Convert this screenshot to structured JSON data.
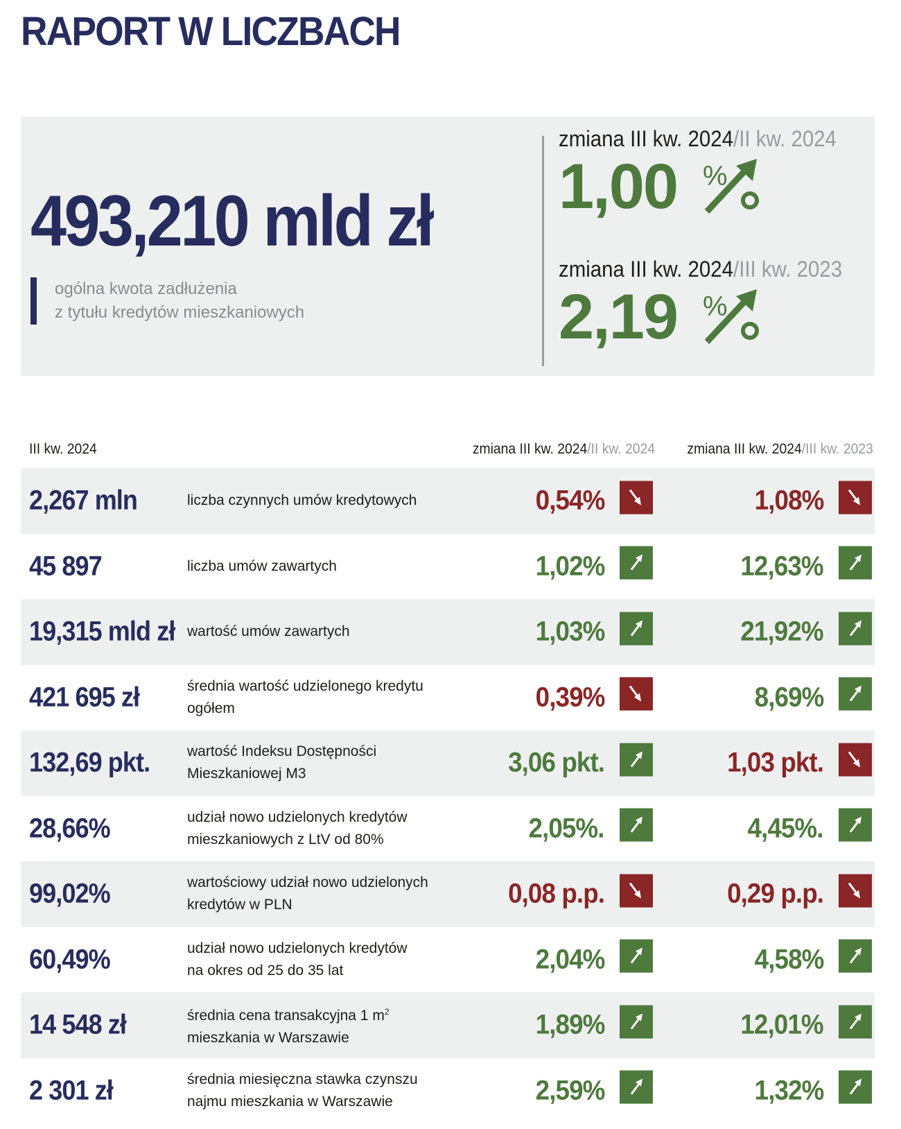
{
  "title": "RAPORT W LICZBACH",
  "summary": {
    "amount": "493,210 mld zł",
    "description_line1": "ogólna kwota zadłużenia",
    "description_line2": "z tytułu kredytów mieszkaniowych",
    "changes": [
      {
        "label_main": "zmiana III kw. 2024",
        "label_ref": "/II kw. 2024",
        "value": "1,00",
        "unit": "%",
        "direction": "up"
      },
      {
        "label_main": "zmiana III kw. 2024",
        "label_ref": "/III kw. 2023",
        "value": "2,19",
        "unit": "%",
        "direction": "up"
      }
    ]
  },
  "table": {
    "headers": {
      "quarter": "III kw. 2024",
      "col1_main": "zmiana III kw. 2024",
      "col1_ref": "/II kw. 2024",
      "col2_main": "zmiana III kw. 2024",
      "col2_ref": "/III kw. 2023"
    },
    "rows": [
      {
        "value": "2,267 mln",
        "desc1": "liczba czynnych umów kredytowych",
        "desc2": "",
        "c1": "0,54%",
        "c1_dir": "down",
        "c2": "1,08%",
        "c2_dir": "down"
      },
      {
        "value": "45 897",
        "desc1": "liczba umów zawartych",
        "desc2": "",
        "c1": "1,02%",
        "c1_dir": "up",
        "c2": "12,63%",
        "c2_dir": "up"
      },
      {
        "value": "19,315 mld zł",
        "desc1": "wartość umów zawartych",
        "desc2": "",
        "c1": "1,03%",
        "c1_dir": "up",
        "c2": "21,92%",
        "c2_dir": "up"
      },
      {
        "value": "421 695 zł",
        "desc1": "średnia wartość udzielonego kredytu",
        "desc2": "ogółem",
        "c1": "0,39%",
        "c1_dir": "down",
        "c2": "8,69%",
        "c2_dir": "up"
      },
      {
        "value": "132,69 pkt.",
        "desc1": "wartość Indeksu Dostępności",
        "desc2": "Mieszkaniowej M3",
        "c1": "3,06 pkt.",
        "c1_dir": "up",
        "c2": "1,03 pkt.",
        "c2_dir": "down"
      },
      {
        "value": "28,66%",
        "desc1": "udział nowo udzielonych kredytów",
        "desc2": "mieszkaniowych z LtV od 80%",
        "c1": "2,05%.",
        "c1_dir": "up",
        "c2": "4,45%.",
        "c2_dir": "up"
      },
      {
        "value": "99,02%",
        "desc1": "wartościowy udział nowo udzielonych",
        "desc2": "kredytów w PLN",
        "c1": "0,08 p.p.",
        "c1_dir": "down",
        "c2": "0,29 p.p.",
        "c2_dir": "down"
      },
      {
        "value": "60,49%",
        "desc1": "udział nowo udzielonych kredytów",
        "desc2": "na okres od 25 do 35 lat",
        "c1": "2,04%",
        "c1_dir": "up",
        "c2": "4,58%",
        "c2_dir": "up"
      },
      {
        "value": "14 548 zł",
        "desc1": "średnia cena transakcyjna 1 m",
        "desc1_sup": "2",
        "desc2": "mieszkania w Warszawie",
        "c1": "1,89%",
        "c1_dir": "up",
        "c2": "12,01%",
        "c2_dir": "up"
      },
      {
        "value": "2 301 zł",
        "desc1": "średnia miesięczna stawka czynszu",
        "desc2": "najmu mieszkania w Warszawie",
        "c1": "2,59%",
        "c1_dir": "up",
        "c2": "1,32%",
        "c2_dir": "up"
      }
    ]
  },
  "colors": {
    "navy": "#262d5e",
    "green_up": "#4e7a3e",
    "red_down": "#8a2626",
    "panel_gray": "#eef0f0",
    "muted_gray": "#9a9b9d"
  },
  "icons": {
    "up": "arrow-up-right-icon",
    "down": "arrow-down-right-icon"
  }
}
